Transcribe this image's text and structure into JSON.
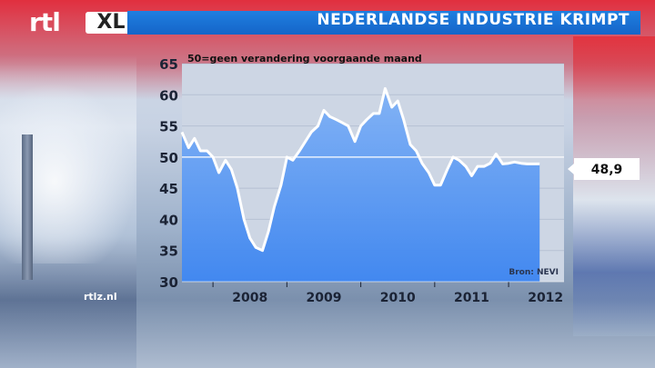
{
  "header": {
    "logo_rtl": "rtl",
    "logo_xl": "XL",
    "title": "NEDERLANDSE INDUSTRIE KRIMPT"
  },
  "footer": {
    "site": "rtlz.nl"
  },
  "chart_data": {
    "type": "area",
    "subtitle": "50=geen verandering voorgaande maand",
    "source_label": "Bron: NEVI",
    "last_value_label": "48,9",
    "y_ticks": [
      "30",
      "35",
      "40",
      "45",
      "50",
      "55",
      "60",
      "65"
    ],
    "x_ticks": [
      "2008",
      "2009",
      "2010",
      "2011",
      "2012"
    ],
    "ylim": [
      30,
      65
    ],
    "xlim": [
      2007.58,
      2012.75
    ],
    "reference_line": 50,
    "colors": {
      "area": "#3b84f0",
      "area_top": "#7fb1f6",
      "line": "#ffffff",
      "panel": "#cdd6e4"
    },
    "series": [
      {
        "x": [
          2007.58,
          2007.67,
          2007.75,
          2007.83,
          2007.92,
          2008.0,
          2008.08,
          2008.17,
          2008.25,
          2008.33,
          2008.42,
          2008.5,
          2008.58,
          2008.67,
          2008.75,
          2008.83,
          2008.92,
          2009.0,
          2009.08,
          2009.17,
          2009.25,
          2009.33,
          2009.42,
          2009.5,
          2009.58,
          2009.67,
          2009.75,
          2009.83,
          2009.92,
          2010.0,
          2010.08,
          2010.17,
          2010.25,
          2010.33,
          2010.42,
          2010.5,
          2010.58,
          2010.67,
          2010.75,
          2010.83,
          2010.92,
          2011.0,
          2011.08,
          2011.17,
          2011.25,
          2011.33,
          2011.42,
          2011.5,
          2011.58,
          2011.67,
          2011.75,
          2011.83,
          2011.92,
          2012.0,
          2012.08,
          2012.17,
          2012.25,
          2012.33,
          2012.42
        ],
        "y": [
          54.0,
          51.5,
          53.0,
          51.0,
          51.0,
          50.0,
          47.5,
          49.5,
          48.0,
          45.0,
          40.0,
          37.0,
          35.5,
          35.0,
          38.0,
          42.0,
          45.5,
          50.0,
          49.5,
          51.0,
          52.5,
          54.0,
          55.0,
          57.5,
          56.5,
          56.0,
          55.5,
          55.0,
          52.5,
          55.0,
          56.0,
          57.0,
          57.0,
          61.0,
          58.0,
          59.0,
          56.0,
          52.0,
          51.0,
          49.0,
          47.5,
          45.5,
          45.5,
          48.0,
          50.0,
          49.5,
          48.5,
          47.0,
          48.5,
          48.5,
          49.0,
          50.5,
          48.9,
          49.0,
          49.2,
          49.0,
          48.9,
          48.9,
          48.9
        ]
      }
    ]
  }
}
